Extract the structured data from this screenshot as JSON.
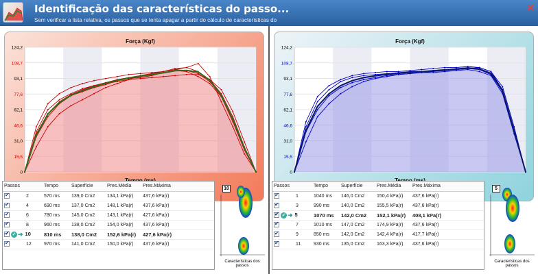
{
  "window": {
    "title": "Identificação das características do passo...",
    "subtitle": "Sem verificar a lista relativa, os passos que se tenta apagar a partir do cálculo de características do",
    "close_label": "✕"
  },
  "colors": {
    "left_accent": "#cc0000",
    "right_accent": "#0000cc",
    "left_avg": "#2e6b1a",
    "right_avg": "#0a1a66"
  },
  "grid_columns": [
    "Passos",
    "Tempo",
    "Superfície",
    "Pres.Média",
    "Pres.Máxima"
  ],
  "left": {
    "chart": {
      "title": "Força (Kgf)",
      "xlabel": "Tempo (ms)",
      "ytick_labels": [
        "124,2",
        "108,7",
        "93,1",
        "77,6",
        "62,1",
        "46,6",
        "31,0",
        "15,5",
        "0"
      ]
    },
    "rows": [
      {
        "step": "2",
        "time": "570 ms",
        "area": "139,0 Cm2",
        "pmean": "134,1 kPa(r)",
        "pmax": "437,6 kPa(r)",
        "current": false
      },
      {
        "step": "4",
        "time": "690 ms",
        "area": "137,0 Cm2",
        "pmean": "148,1 kPa(r)",
        "pmax": "437,6 kPa(r)",
        "current": false
      },
      {
        "step": "6",
        "time": "780 ms",
        "area": "145,0 Cm2",
        "pmean": "143,1 kPa(r)",
        "pmax": "427,6 kPa(r)",
        "current": false
      },
      {
        "step": "8",
        "time": "960 ms",
        "area": "138,0 Cm2",
        "pmean": "154,0 kPa(r)",
        "pmax": "437,6 kPa(r)",
        "current": false
      },
      {
        "step": "10",
        "time": "810 ms",
        "area": "138,0 Cm2",
        "pmean": "152,6 kPa(r)",
        "pmax": "427,6 kPa(r)",
        "current": true
      },
      {
        "step": "12",
        "time": "970 ms",
        "area": "141,0 Cm2",
        "pmean": "150,0 kPa(r)",
        "pmax": "437,6 kPa(r)",
        "current": false
      }
    ],
    "foot": {
      "badge": "10",
      "caption": "Características dos passos"
    }
  },
  "right": {
    "chart": {
      "title": "Força (Kgf)",
      "xlabel": "Tempo (ms)",
      "ytick_labels": [
        "124,2",
        "108,7",
        "93,1",
        "77,6",
        "62,1",
        "46,6",
        "31,0",
        "15,5",
        "0"
      ]
    },
    "rows": [
      {
        "step": "1",
        "time": "1040 ms",
        "area": "146,0 Cm2",
        "pmean": "150,4 kPa(r)",
        "pmax": "437,6 kPa(r)",
        "current": false
      },
      {
        "step": "3",
        "time": "990 ms",
        "area": "140,0 Cm2",
        "pmean": "155,5 kPa(r)",
        "pmax": "437,6 kPa(r)",
        "current": false
      },
      {
        "step": "5",
        "time": "1070 ms",
        "area": "142,0 Cm2",
        "pmean": "152,1 kPa(r)",
        "pmax": "408,1 kPa(r)",
        "current": true
      },
      {
        "step": "7",
        "time": "1010 ms",
        "area": "147,0 Cm2",
        "pmean": "174,9 kPa(r)",
        "pmax": "437,6 kPa(r)",
        "current": false
      },
      {
        "step": "9",
        "time": "850 ms",
        "area": "142,0 Cm2",
        "pmean": "142,4 kPa(r)",
        "pmax": "417,7 kPa(r)",
        "current": false
      },
      {
        "step": "11",
        "time": "930 ms",
        "area": "135,0 Cm2",
        "pmean": "163,3 kPa(r)",
        "pmax": "437,6 kPa(r)",
        "current": false
      }
    ],
    "foot": {
      "badge": "5",
      "caption": "Características dos passos"
    }
  },
  "chart_data": [
    {
      "type": "line",
      "title": "Força (Kgf)",
      "xlabel": "Tempo (ms)",
      "ylabel": "",
      "ylim": [
        0,
        124.2
      ],
      "x": [
        0,
        5,
        10,
        15,
        20,
        25,
        30,
        35,
        40,
        45,
        50,
        55,
        60,
        65,
        70,
        75,
        80,
        85,
        90,
        95,
        100
      ],
      "series": [
        {
          "values": [
            0,
            40,
            62,
            72,
            78,
            83,
            86,
            88,
            90,
            92,
            93,
            94,
            95,
            96,
            97,
            97,
            92,
            82,
            60,
            30,
            0
          ]
        },
        {
          "values": [
            0,
            35,
            55,
            68,
            76,
            80,
            84,
            87,
            91,
            93,
            94,
            96,
            99,
            101,
            100,
            95,
            88,
            75,
            50,
            22,
            0
          ]
        },
        {
          "values": [
            0,
            25,
            45,
            58,
            66,
            72,
            78,
            84,
            88,
            92,
            96,
            98,
            100,
            103,
            104,
            100,
            92,
            78,
            55,
            25,
            0
          ]
        },
        {
          "values": [
            0,
            45,
            68,
            78,
            84,
            88,
            91,
            93,
            95,
            97,
            98,
            99,
            100,
            102,
            104,
            108,
            95,
            70,
            45,
            18,
            0
          ]
        },
        {
          "values": [
            0,
            38,
            58,
            70,
            77,
            82,
            86,
            89,
            92,
            94,
            96,
            98,
            100,
            102,
            101,
            98,
            90,
            76,
            52,
            24,
            0
          ]
        }
      ]
    },
    {
      "type": "line",
      "title": "Força (Kgf)",
      "xlabel": "Tempo (ms)",
      "ylabel": "",
      "ylim": [
        0,
        124.2
      ],
      "x": [
        0,
        5,
        10,
        15,
        20,
        25,
        30,
        35,
        40,
        45,
        50,
        55,
        60,
        65,
        70,
        75,
        80,
        85,
        90,
        95,
        100
      ],
      "series": [
        {
          "values": [
            0,
            45,
            70,
            82,
            90,
            94,
            96,
            97,
            98,
            99,
            100,
            100,
            101,
            102,
            103,
            104,
            103,
            98,
            80,
            40,
            0
          ]
        },
        {
          "values": [
            0,
            40,
            62,
            76,
            84,
            89,
            92,
            94,
            96,
            97,
            98,
            99,
            100,
            101,
            102,
            103,
            104,
            100,
            85,
            45,
            0
          ]
        },
        {
          "values": [
            0,
            30,
            55,
            68,
            78,
            85,
            90,
            93,
            95,
            97,
            98,
            99,
            99,
            100,
            101,
            102,
            100,
            96,
            78,
            38,
            0
          ]
        },
        {
          "values": [
            0,
            50,
            75,
            86,
            92,
            96,
            98,
            99,
            100,
            100,
            101,
            102,
            103,
            104,
            104,
            105,
            104,
            100,
            82,
            42,
            0
          ]
        },
        {
          "values": [
            0,
            42,
            65,
            78,
            86,
            91,
            94,
            96,
            97,
            98,
            99,
            100,
            101,
            102,
            102,
            103,
            102,
            97,
            80,
            40,
            0
          ]
        }
      ]
    }
  ]
}
